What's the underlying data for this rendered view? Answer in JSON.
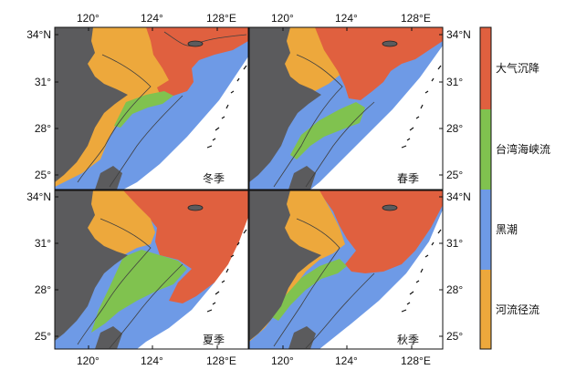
{
  "colors": {
    "land": "#5b5b5d",
    "sea": "#ffffff",
    "atmospheric": "#e0603f",
    "taiwan_strait": "#80c24f",
    "kuroshio": "#6e9ae6",
    "river": "#eda83c",
    "contour": "#3f3f3f"
  },
  "axes": {
    "x_ticks": [
      "120°",
      "124°",
      "128°E"
    ],
    "y_ticks_left": [
      "34°N",
      "31°",
      "28°",
      "25°"
    ],
    "y_ticks_right": [
      "34°N",
      "31°",
      "28°",
      "25°"
    ]
  },
  "panels": [
    {
      "id": "winter",
      "label": "冬季"
    },
    {
      "id": "spring",
      "label": "春季"
    },
    {
      "id": "summer",
      "label": "夏季"
    },
    {
      "id": "autumn",
      "label": "秋季"
    }
  ],
  "legend": [
    {
      "label": "大气沉降",
      "color": "#e0603f"
    },
    {
      "label": "台湾海峡流",
      "color": "#80c24f"
    },
    {
      "label": "黑潮",
      "color": "#6e9ae6"
    },
    {
      "label": "河流径流",
      "color": "#eda83c"
    }
  ]
}
